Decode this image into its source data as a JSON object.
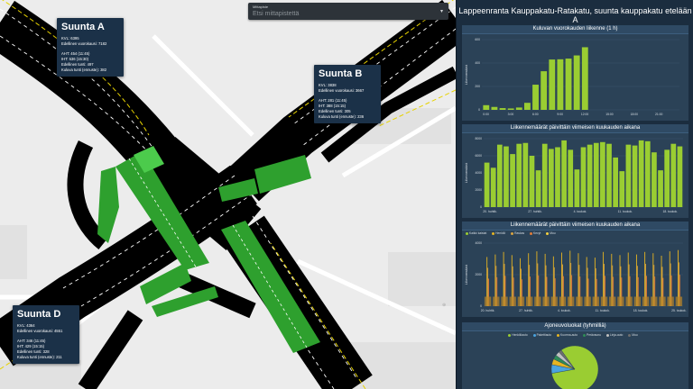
{
  "search": {
    "label": "Mittapiste",
    "placeholder": "Etsi mittapistettä"
  },
  "map": {
    "boxes": [
      {
        "id": "a",
        "title": "Suunta A",
        "lines": [
          "KVL: 6395",
          "Edellinen vuorokausi: 7182"
        ],
        "lines2": [
          "AHT: 454 (11:45)",
          "IHT: 536 (15:30)",
          "Edellinen tunti: 497",
          "Kuluva tunti (ennuste): 382"
        ]
      },
      {
        "id": "b",
        "title": "Suunta B",
        "lines": [
          "KVL: 3838",
          "Edellinen vuorokausi: 3667"
        ],
        "lines2": [
          "AHT: 281 (11:45)",
          "IHT: 388 (15:15)",
          "Edellinen tunti: 305",
          "Kuluva tunti (ennuste): 236"
        ]
      },
      {
        "id": "d",
        "title": "Suunta D",
        "lines": [
          "KVL: 4364",
          "Edellinen vuorokausi: 4551"
        ],
        "lines2": [
          "AHT: 346 (11:45)",
          "IHT: 429 (15:15)",
          "Edellinen tunti: 328",
          "Kuluva tunti (ennuste): 211"
        ]
      }
    ]
  },
  "panel": {
    "title": "Lappeenranta Kauppakatu-Ratakatu, suunta kauppakatu etelään A",
    "chart1_title": "Kuluvan vuorokauden liikenne (1 h)",
    "chart2_title": "Liikennemäärät päivittäin viimeisen kuukauden aikana",
    "chart3_title": "Liikennemäärät päivittäin viimeisen kuukauden aikana",
    "chart4_title": "Ajoneuvoluokat (tyhmilliä)",
    "pie_legend": [
      {
        "label": "Henkilöauto",
        "color": "#9acd32"
      },
      {
        "label": "Pakettiauto",
        "color": "#4aa3df"
      },
      {
        "label": "Kuorma-auto",
        "color": "#e6b422"
      },
      {
        "label": "Perävaunu",
        "color": "#2e8b57"
      },
      {
        "label": "Linja-auto",
        "color": "#c0c0c0"
      },
      {
        "label": "Muu",
        "color": "#6e6e6e"
      }
    ],
    "c3_legend": [
      {
        "label": "Kaikki kaistat",
        "color": "#9acd32"
      },
      {
        "label": "Henkilö",
        "color": "#e6b422"
      },
      {
        "label": "Raskas",
        "color": "#d9a441"
      },
      {
        "label": "Kevyt",
        "color": "#e07b39"
      },
      {
        "label": "Muu",
        "color": "#f4d03f"
      }
    ]
  },
  "chart_data": [
    {
      "type": "bar",
      "title": "Kuluvan vuorokauden liikenne (1 h)",
      "ylabel": "Liikennemäärä",
      "x_tick_labels": [
        "0:00",
        "3:00",
        "6:00",
        "9:00",
        "12:00",
        "15:00",
        "18:00",
        "21:00"
      ],
      "x": [
        0,
        1,
        2,
        3,
        4,
        5,
        6,
        7,
        8,
        9,
        10,
        11,
        12
      ],
      "values": [
        40,
        25,
        15,
        12,
        20,
        60,
        215,
        330,
        430,
        432,
        438,
        465,
        535
      ],
      "y_tick_labels": [
        "0",
        "200",
        "400",
        "600"
      ],
      "ylim": [
        0,
        600
      ],
      "color": "#9acd32"
    },
    {
      "type": "bar",
      "title": "Liikennemäärät päivittäin viimeisen kuukauden aikana",
      "ylabel": "Liikennemäärä",
      "x_tick_labels": [
        "20. huhtik.",
        "27. huhtik.",
        "4. toukok.",
        "11. toukok.",
        "18. toukok."
      ],
      "values": [
        5200,
        4600,
        7300,
        7100,
        6200,
        7400,
        7500,
        6000,
        4300,
        7400,
        6800,
        7000,
        7800,
        6700,
        4400,
        7000,
        7300,
        7500,
        7600,
        7400,
        5800,
        4200,
        7300,
        7200,
        7800,
        7700,
        6400,
        4300,
        6700,
        7400,
        7100
      ],
      "y_tick_labels": [
        "0",
        "2000",
        "4000",
        "6000",
        "8000"
      ],
      "ylim": [
        0,
        8000
      ],
      "color": "#9acd32"
    },
    {
      "type": "line",
      "title": "Liikennemäärät päivittäin viimeisen kuukauden aikana",
      "ylabel": "Liikennemäärä",
      "x_tick_labels": [
        "20. huhtik.",
        "27. huhtik.",
        "4. toukok.",
        "11. toukok.",
        "18. toukok.",
        "25. toukok."
      ],
      "series": [
        {
          "name": "Kaikki kaistat",
          "peaks": [
            3900,
            4100,
            4300,
            4050,
            3800,
            4200,
            4350,
            4150,
            3950,
            4250,
            4400,
            4200,
            3900,
            3850,
            4300,
            4150,
            4050,
            4250,
            4100,
            4300,
            4200,
            4000,
            4350,
            4450
          ]
        }
      ],
      "y_tick_labels": [
        "0",
        "2000",
        "4000"
      ],
      "ylim": [
        0,
        5000
      ]
    },
    {
      "type": "pie",
      "title": "Ajoneuvoluokat (tyhmilliä)",
      "labels": [
        "Henkilöauto",
        "Pakettiauto",
        "Kuorma-auto",
        "Perävaunu",
        "Linja-auto",
        "Muu"
      ],
      "values": [
        82,
        6,
        4,
        3,
        3,
        2
      ]
    }
  ]
}
